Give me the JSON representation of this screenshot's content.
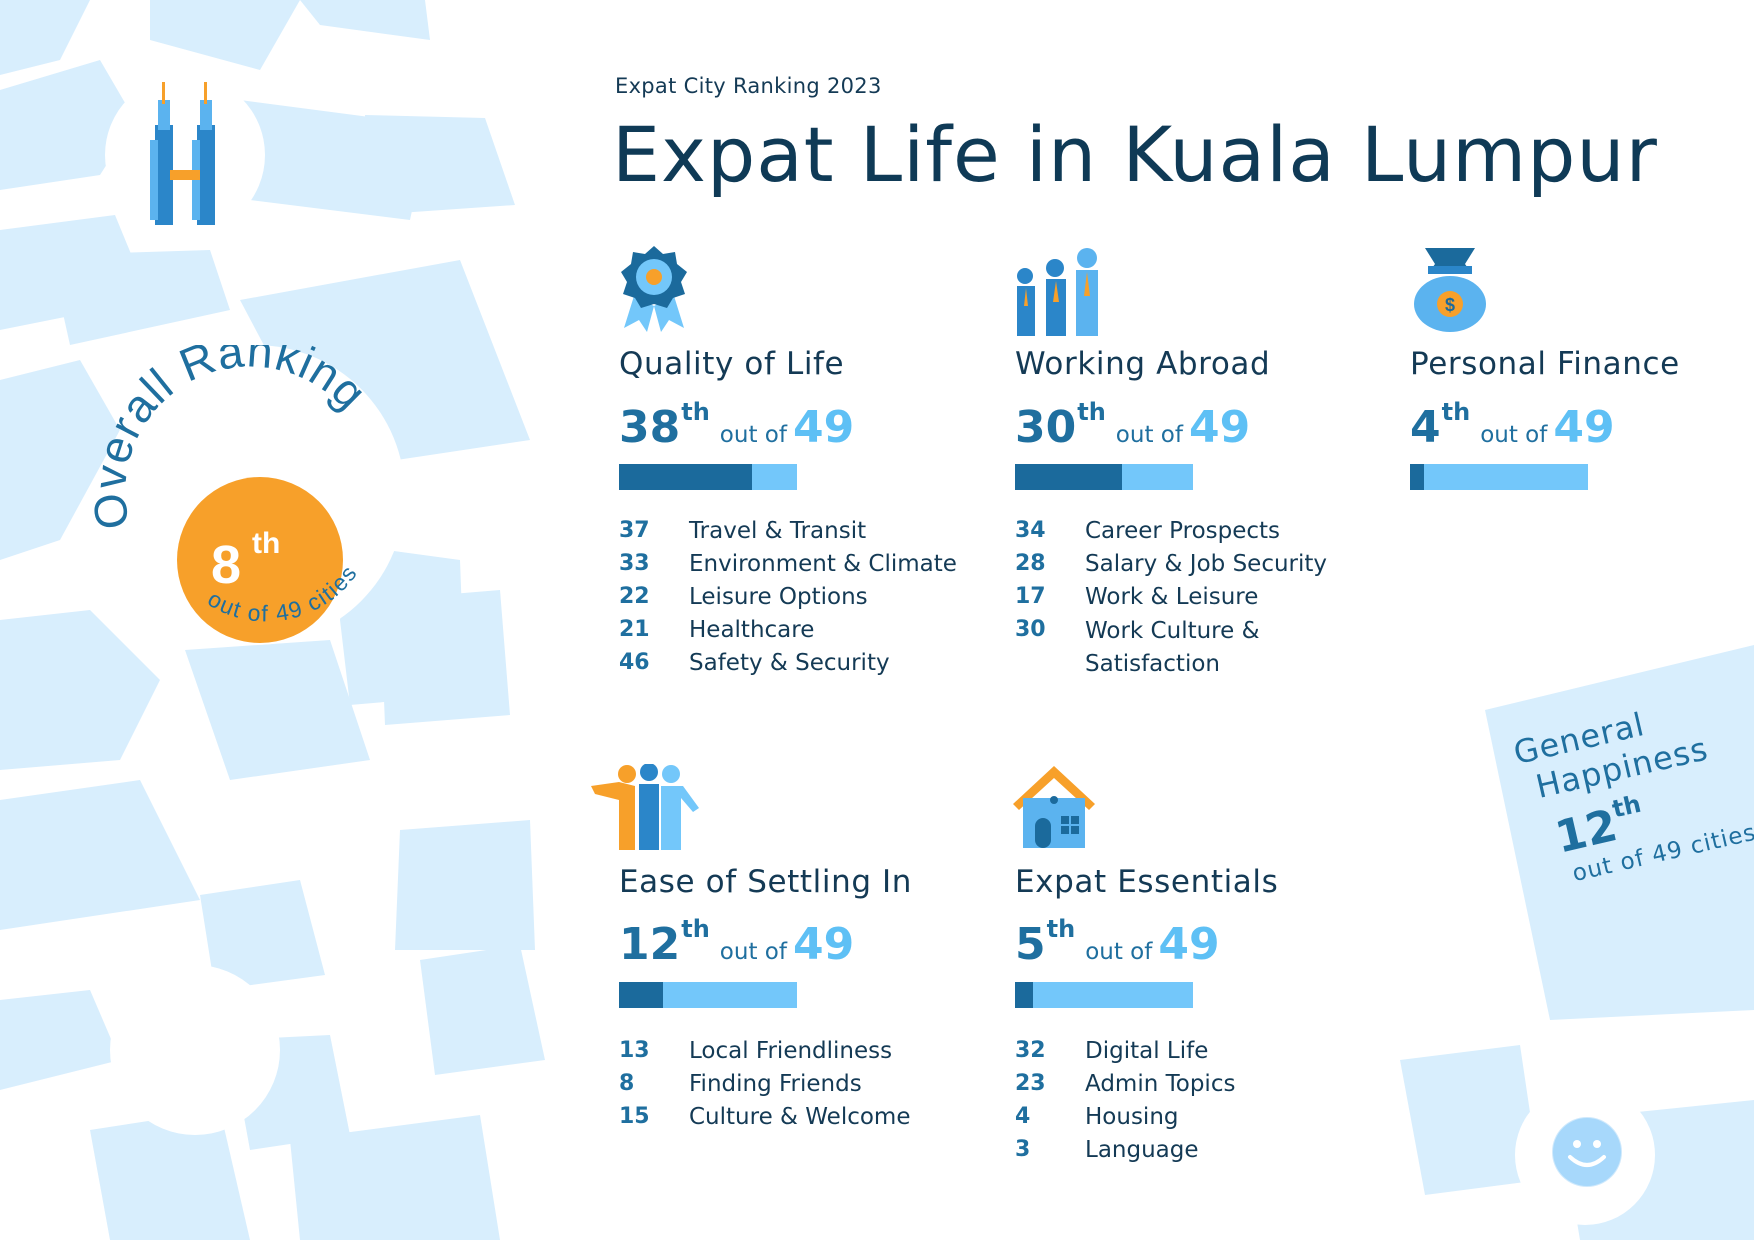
{
  "header": {
    "kicker": "Expat City Ranking 2023",
    "title": "Expat Life in Kuala Lumpur"
  },
  "colors": {
    "dark_blue": "#1b6a9c",
    "light_blue": "#73c7fa",
    "orange": "#f7a02a",
    "map_block": "#d8eefd",
    "text_dark": "#143a55"
  },
  "overall": {
    "arc_label": "Overall Ranking",
    "rank": "8",
    "suffix": "th",
    "sub_label": "out of 49 cities",
    "fraction_of_total": 0.163
  },
  "general_happiness": {
    "label_line1": "General",
    "label_line2": "Happiness",
    "rank": "12",
    "suffix": "th",
    "sub_label": "out of 49 cities"
  },
  "icons": {
    "landmark": "petronas-towers-icon",
    "bird": "stork-icon",
    "smiley": "smiley-icon"
  },
  "categories": [
    {
      "icon": "medal-icon",
      "title": "Quality of Life",
      "rank": "38",
      "suffix": "th",
      "out_of": "out of",
      "total": "49",
      "bar_fraction": 0.745,
      "subs": [
        {
          "rank": "37",
          "label": "Travel & Transit"
        },
        {
          "rank": "33",
          "label": "Environment & Climate"
        },
        {
          "rank": "22",
          "label": "Leisure Options"
        },
        {
          "rank": "21",
          "label": "Healthcare"
        },
        {
          "rank": "46",
          "label": "Safety & Security"
        }
      ]
    },
    {
      "icon": "business-people-icon",
      "title": "Working Abroad",
      "rank": "30",
      "suffix": "th",
      "out_of": "out of",
      "total": "49",
      "bar_fraction": 0.6,
      "subs": [
        {
          "rank": "34",
          "label": "Career Prospects"
        },
        {
          "rank": "28",
          "label": "Salary & Job Security"
        },
        {
          "rank": "17",
          "label": "Work & Leisure"
        },
        {
          "rank": "30",
          "label": "Work Culture & Satisfaction"
        }
      ]
    },
    {
      "icon": "money-bag-icon",
      "title": "Personal Finance",
      "rank": "4",
      "suffix": "th",
      "out_of": "out of",
      "total": "49",
      "bar_fraction": 0.08,
      "subs": []
    },
    {
      "icon": "friends-group-icon",
      "title": "Ease of Settling In",
      "rank": "12",
      "suffix": "th",
      "out_of": "out of",
      "total": "49",
      "bar_fraction": 0.245,
      "subs": [
        {
          "rank": "13",
          "label": "Local Friendliness"
        },
        {
          "rank": "8",
          "label": "Finding Friends"
        },
        {
          "rank": "15",
          "label": "Culture & Welcome"
        }
      ]
    },
    {
      "icon": "house-icon",
      "title": "Expat Essentials",
      "rank": "5",
      "suffix": "th",
      "out_of": "out of",
      "total": "49",
      "bar_fraction": 0.1,
      "subs": [
        {
          "rank": "32",
          "label": "Digital Life"
        },
        {
          "rank": "23",
          "label": "Admin Topics"
        },
        {
          "rank": "4",
          "label": "Housing"
        },
        {
          "rank": "3",
          "label": "Language"
        }
      ]
    }
  ]
}
